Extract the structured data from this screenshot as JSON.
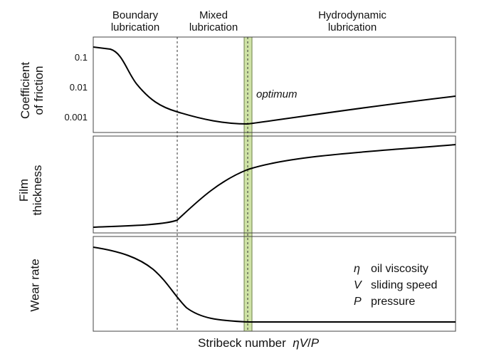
{
  "regions": {
    "boundary": "Boundary\nlubrication",
    "mixed": "Mixed\nlubrication",
    "hydrodynamic": "Hydrodynamic\nlubrication"
  },
  "panels": {
    "friction": {
      "ylabel": "Coefficient\nof friction",
      "ticks": [
        "0.1",
        "0.01",
        "0.001"
      ],
      "annotation": "optimum"
    },
    "film": {
      "ylabel": "Film\nthickness"
    },
    "wear": {
      "ylabel": "Wear rate"
    }
  },
  "legend": [
    {
      "symbol": "η",
      "text": "oil viscosity"
    },
    {
      "symbol": "V",
      "text": "sliding speed"
    },
    {
      "symbol": "P",
      "text": "pressure"
    }
  ],
  "xaxis": {
    "label": "Stribeck number",
    "expr_1": "η",
    "expr_2": "V",
    "expr_3": "/",
    "expr_4": "P"
  },
  "colors": {
    "optimum_band": "#cfe3a6",
    "curve": "#000000",
    "frame": "#444444"
  }
}
